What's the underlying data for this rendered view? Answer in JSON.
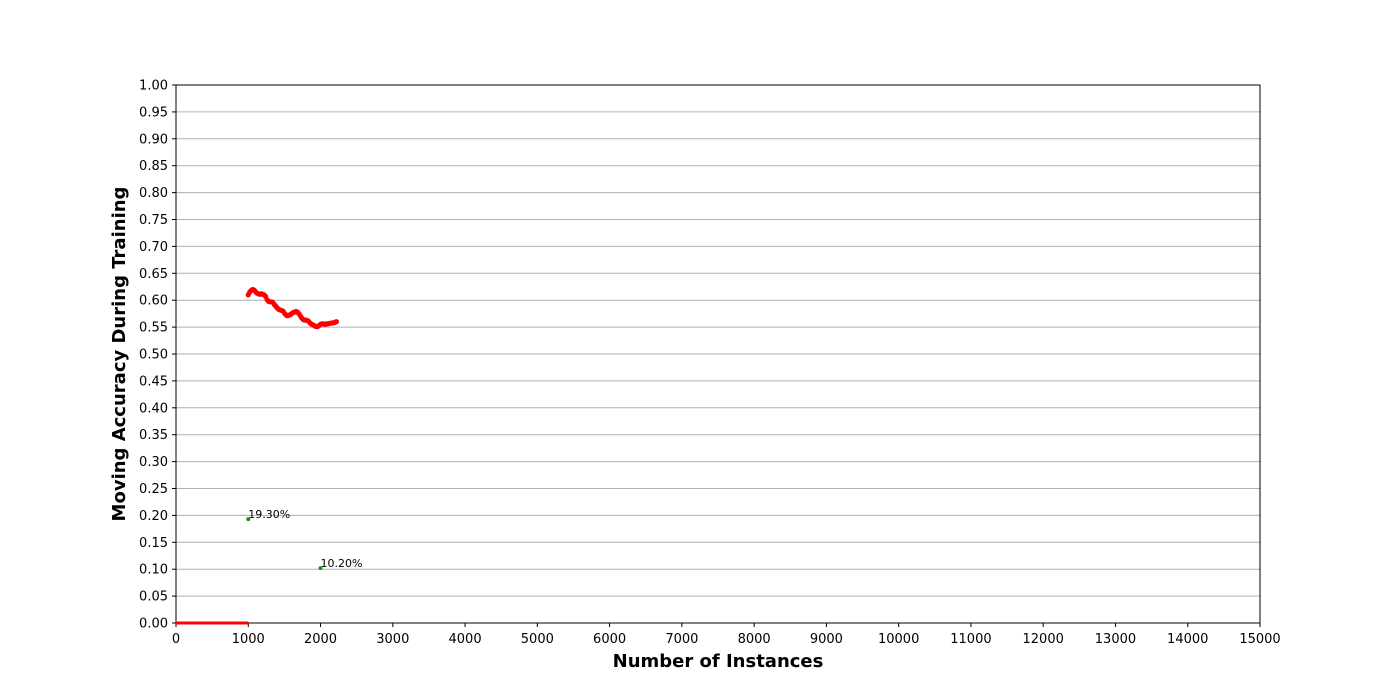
{
  "chart_data": {
    "type": "scatter",
    "title": "",
    "xlabel": "Number of Instances",
    "ylabel": "Moving Accuracy During Training",
    "xlim": [
      0,
      15000
    ],
    "ylim": [
      0,
      1.0
    ],
    "xticks": [
      0,
      1000,
      2000,
      3000,
      4000,
      5000,
      6000,
      7000,
      8000,
      9000,
      10000,
      11000,
      12000,
      13000,
      14000,
      15000
    ],
    "yticks": [
      0.0,
      0.05,
      0.1,
      0.15,
      0.2,
      0.25,
      0.3,
      0.35,
      0.4,
      0.45,
      0.5,
      0.55,
      0.6,
      0.65,
      0.7,
      0.75,
      0.8,
      0.85,
      0.9,
      0.95,
      1.0
    ],
    "ytick_labels": [
      "0.00",
      "0.05",
      "0.10",
      "0.15",
      "0.20",
      "0.25",
      "0.30",
      "0.35",
      "0.40",
      "0.45",
      "0.50",
      "0.55",
      "0.60",
      "0.65",
      "0.70",
      "0.75",
      "0.80",
      "0.85",
      "0.90",
      "0.95",
      "1.00"
    ],
    "grid": "horizontal",
    "series": [
      {
        "kind": "line",
        "color": "#ff0000",
        "points": [
          [
            0,
            0
          ],
          [
            1000,
            0
          ]
        ]
      },
      {
        "kind": "scatter",
        "color": "#ff0000",
        "points": [
          [
            1000,
            0.61
          ],
          [
            1020,
            0.615
          ],
          [
            1040,
            0.618
          ],
          [
            1060,
            0.62
          ],
          [
            1080,
            0.619
          ],
          [
            1100,
            0.616
          ],
          [
            1120,
            0.613
          ],
          [
            1140,
            0.612
          ],
          [
            1160,
            0.611
          ],
          [
            1180,
            0.612
          ],
          [
            1200,
            0.611
          ],
          [
            1220,
            0.61
          ],
          [
            1240,
            0.607
          ],
          [
            1260,
            0.601
          ],
          [
            1280,
            0.598
          ],
          [
            1300,
            0.597
          ],
          [
            1320,
            0.597
          ],
          [
            1340,
            0.596
          ],
          [
            1360,
            0.592
          ],
          [
            1380,
            0.589
          ],
          [
            1400,
            0.586
          ],
          [
            1420,
            0.583
          ],
          [
            1440,
            0.582
          ],
          [
            1460,
            0.581
          ],
          [
            1480,
            0.58
          ],
          [
            1500,
            0.576
          ],
          [
            1520,
            0.573
          ],
          [
            1540,
            0.571
          ],
          [
            1560,
            0.572
          ],
          [
            1580,
            0.573
          ],
          [
            1600,
            0.575
          ],
          [
            1620,
            0.577
          ],
          [
            1640,
            0.578
          ],
          [
            1660,
            0.579
          ],
          [
            1680,
            0.578
          ],
          [
            1700,
            0.575
          ],
          [
            1720,
            0.571
          ],
          [
            1740,
            0.567
          ],
          [
            1760,
            0.564
          ],
          [
            1780,
            0.563
          ],
          [
            1800,
            0.563
          ],
          [
            1820,
            0.562
          ],
          [
            1840,
            0.56
          ],
          [
            1860,
            0.557
          ],
          [
            1880,
            0.555
          ],
          [
            1900,
            0.554
          ],
          [
            1920,
            0.552
          ],
          [
            1940,
            0.551
          ],
          [
            1960,
            0.551
          ],
          [
            1980,
            0.553
          ],
          [
            2000,
            0.555
          ],
          [
            2020,
            0.556
          ],
          [
            2040,
            0.556
          ],
          [
            2060,
            0.555
          ],
          [
            2080,
            0.556
          ],
          [
            2100,
            0.556
          ],
          [
            2120,
            0.557
          ],
          [
            2140,
            0.557
          ],
          [
            2160,
            0.558
          ],
          [
            2180,
            0.558
          ],
          [
            2200,
            0.559
          ],
          [
            2220,
            0.56
          ]
        ]
      },
      {
        "kind": "scatter",
        "color": "#228b22",
        "points": [
          [
            1000,
            0.193
          ],
          [
            2000,
            0.102
          ]
        ]
      }
    ],
    "annotations": [
      {
        "x": 1000,
        "y": 0.193,
        "text": "19.30%"
      },
      {
        "x": 2000,
        "y": 0.102,
        "text": "10.20%"
      }
    ]
  }
}
